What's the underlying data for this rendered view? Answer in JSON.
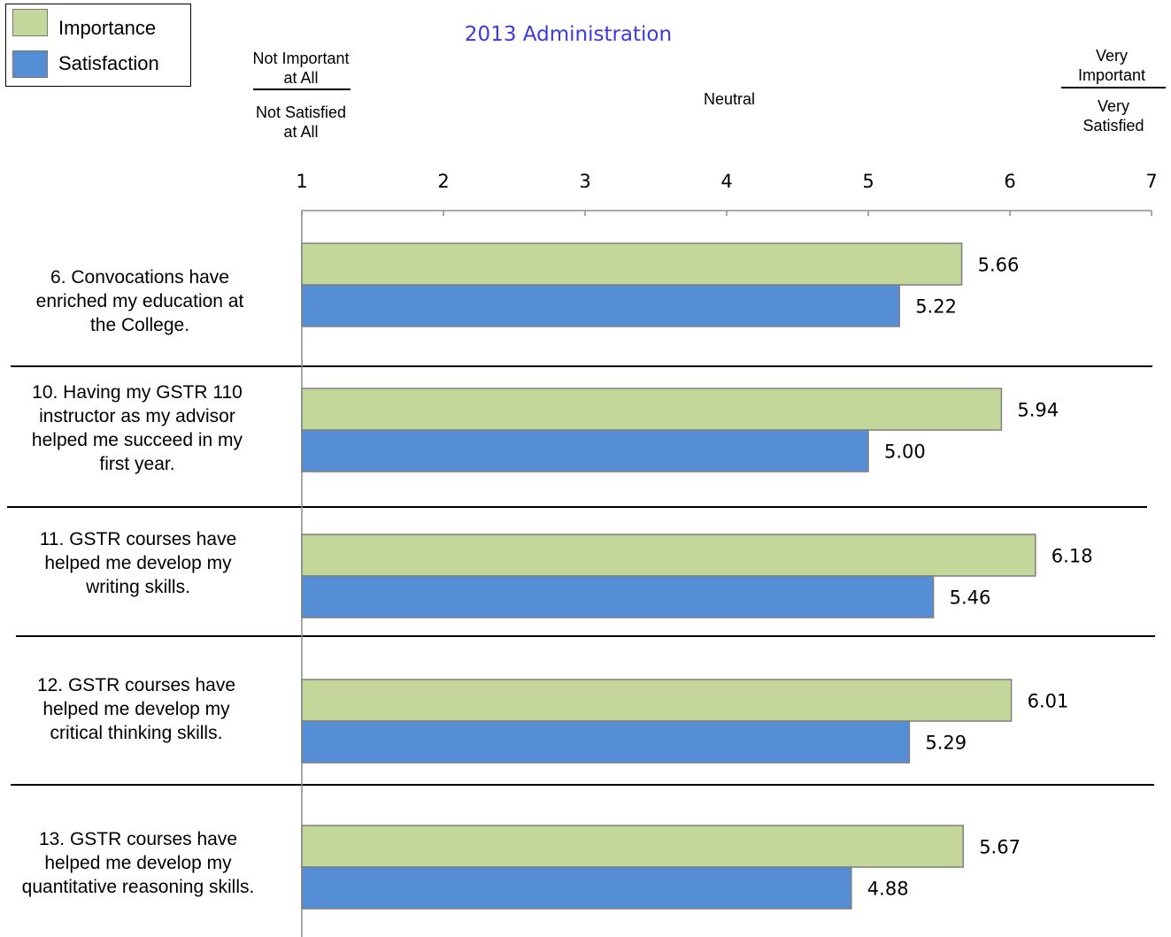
{
  "legend": {
    "importance_label": "Importance",
    "satisfaction_label": "Satisfaction"
  },
  "title": "2013 Administration",
  "scale_labels": {
    "left_top": "Not Important\nat All",
    "left_bottom": "Not Satisfied\nat All",
    "middle": "Neutral",
    "right_top": "Very\nImportant",
    "right_bottom": "Very\nSatisfied"
  },
  "colors": {
    "importance": "#c4d79b",
    "satisfaction": "#558ed5",
    "title": "#3a3ae0"
  },
  "questions": [
    "6. Convocations have\nenriched my education at\nthe College.",
    "10. Having my GSTR 110\ninstructor as my advisor\nhelped me succeed in my\nfirst year.",
    "11. GSTR courses have\nhelped me develop my\nwriting skills.",
    "12. GSTR courses have\nhelped me develop my\ncritical thinking skills.",
    "13. GSTR courses have\nhelped me develop my\nquantitative reasoning skills."
  ],
  "chart_data": {
    "type": "bar",
    "orientation": "horizontal",
    "title": "2013 Administration",
    "categories": [
      "6",
      "10",
      "11",
      "12",
      "13"
    ],
    "series": [
      {
        "name": "Importance",
        "values": [
          5.66,
          5.94,
          6.18,
          6.01,
          5.67
        ],
        "labels": [
          "5.66",
          "5.94",
          "6.18",
          "6.01",
          "5.67"
        ]
      },
      {
        "name": "Satisfaction",
        "values": [
          5.22,
          5.0,
          5.46,
          5.29,
          4.88
        ],
        "labels": [
          "5.22",
          "5.00",
          "5.46",
          "5.29",
          "4.88"
        ]
      }
    ],
    "xlim": [
      1,
      7
    ],
    "ticks": [
      "1",
      "2",
      "3",
      "4",
      "5",
      "6",
      "7"
    ],
    "grid": false,
    "legend_position": "top-left"
  }
}
